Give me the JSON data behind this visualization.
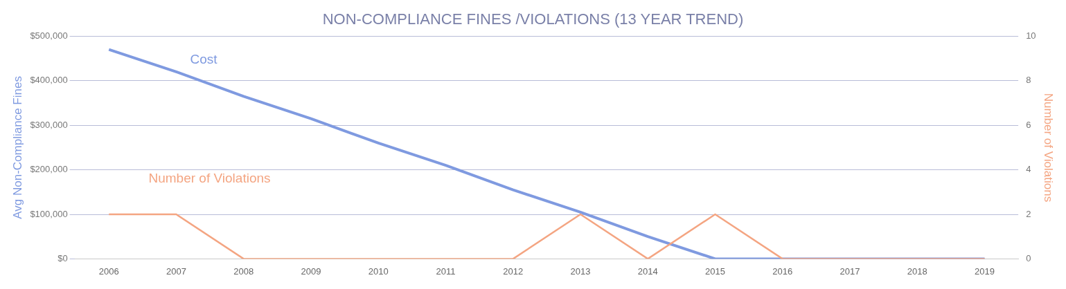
{
  "chart_data": {
    "type": "line",
    "title": "NON-COMPLIANCE FINES /VIOLATIONS (13 YEAR TREND)",
    "ylabel": "Avg Non-Compliance Fines",
    "y2label": "Number of Violations",
    "categories": [
      "2006",
      "2007",
      "2008",
      "2009",
      "2010",
      "2011",
      "2012",
      "2013",
      "2014",
      "2015",
      "2016",
      "2017",
      "2018",
      "2019"
    ],
    "series": [
      {
        "name": "Cost",
        "color": "#7f9ae0",
        "values": [
          470000,
          420000,
          365000,
          315000,
          260000,
          210000,
          155000,
          105000,
          50000,
          0,
          0,
          0,
          0,
          0
        ]
      },
      {
        "name": "Number of Violations",
        "color": "#f4a582",
        "axis": "y2",
        "values": [
          2,
          2,
          0,
          0,
          0,
          0,
          0,
          2,
          0,
          2,
          0,
          0,
          0,
          0
        ]
      }
    ],
    "ylim": [
      0,
      500000
    ],
    "yticks": [
      {
        "value": 0,
        "label": "$0"
      },
      {
        "value": 100000,
        "label": "$100,000"
      },
      {
        "value": 200000,
        "label": "$200,000"
      },
      {
        "value": 300000,
        "label": "$300,000"
      },
      {
        "value": 400000,
        "label": "$400,000"
      },
      {
        "value": 500000,
        "label": "$500,000"
      }
    ],
    "y2lim": [
      0,
      10
    ],
    "y2ticks": [
      0,
      2,
      4,
      6,
      8,
      10
    ],
    "grid": "y",
    "legend": false,
    "marker": "none",
    "line_style": "solid"
  }
}
